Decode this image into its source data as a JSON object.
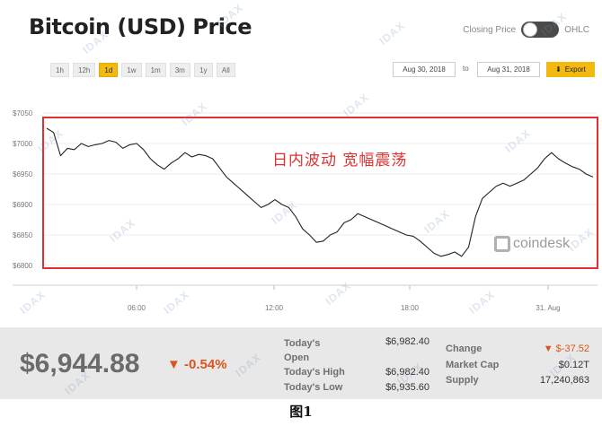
{
  "header": {
    "title": "Bitcoin (USD) Price"
  },
  "toggle": {
    "left_label": "Closing Price",
    "right_label": "OHLC"
  },
  "ranges": [
    "1h",
    "12h",
    "1d",
    "1w",
    "1m",
    "3m",
    "1y",
    "All"
  ],
  "active_range": "1d",
  "dates": {
    "from": "Aug 30, 2018",
    "to_label": "to",
    "to": "Aug 31, 2018"
  },
  "export_label": "Export",
  "annotation": "日内波动  宽幅震荡",
  "brand": "coindesk",
  "watermark": "IDAX",
  "chart_data": {
    "type": "line",
    "title": "Bitcoin (USD) Price",
    "y_ticks": [
      "$7050",
      "$7000",
      "$6950",
      "$6900",
      "$6850",
      "$6800"
    ],
    "ylim": [
      6800,
      7050
    ],
    "x_ticks": [
      "06:00",
      "12:00",
      "18:00",
      "31. Aug"
    ],
    "series": [
      {
        "values": [
          7025,
          7018,
          6980,
          6992,
          6990,
          7000,
          6995,
          6998,
          7000,
          7005,
          7002,
          6992,
          6998,
          7000,
          6990,
          6975,
          6965,
          6958,
          6968,
          6975,
          6985,
          6978,
          6982,
          6980,
          6975,
          6960,
          6945,
          6935,
          6925,
          6915,
          6905,
          6895,
          6900,
          6908,
          6900,
          6895,
          6880,
          6860,
          6850,
          6838,
          6840,
          6850,
          6855,
          6870,
          6875,
          6885,
          6880,
          6875,
          6870,
          6865,
          6860,
          6855,
          6850,
          6848,
          6840,
          6830,
          6820,
          6815,
          6818,
          6822,
          6815,
          6830,
          6880,
          6910,
          6920,
          6930,
          6935,
          6930,
          6935,
          6940,
          6950,
          6960,
          6975,
          6985,
          6975,
          6968,
          6962,
          6958,
          6950,
          6945
        ]
      }
    ]
  },
  "summary": {
    "price": "$6,944.88",
    "change": "▼ -0.54%",
    "open_label": "Today's Open",
    "open_value": "$6,982.40",
    "high_label": "Today's High",
    "high_value": "$6,982.40",
    "low_label": "Today's Low",
    "low_value": "$6,935.60",
    "change_label": "Change",
    "change_value": "▼ $-37.52",
    "mcap_label": "Market Cap",
    "mcap_value": "$0.12T",
    "supply_label": "Supply",
    "supply_value": "17,240,863"
  },
  "caption": "图1",
  "colors": {
    "accent": "#f2b90f",
    "down": "#d9541e",
    "highlight_box": "#e03030",
    "line": "#222222"
  }
}
